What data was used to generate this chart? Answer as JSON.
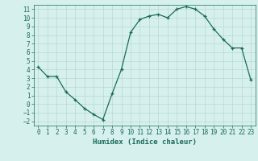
{
  "x": [
    0,
    1,
    2,
    3,
    4,
    5,
    6,
    7,
    8,
    9,
    10,
    11,
    12,
    13,
    14,
    15,
    16,
    17,
    18,
    19,
    20,
    21,
    22,
    23
  ],
  "y": [
    4.3,
    3.2,
    3.2,
    1.4,
    0.5,
    -0.5,
    -1.2,
    -1.8,
    1.2,
    4.0,
    8.3,
    9.8,
    10.2,
    10.4,
    10.0,
    11.0,
    11.3,
    11.0,
    10.2,
    8.7,
    7.5,
    6.5,
    6.5,
    2.8
  ],
  "line_color": "#1a6b5a",
  "marker": "+",
  "markersize": 3.5,
  "linewidth": 0.9,
  "bg_color": "#d6f0ee",
  "grid_color": "#b8d8d4",
  "axes_bg": "#d6f0ee",
  "xlabel": "Humidex (Indice chaleur)",
  "xlabel_fontsize": 6.5,
  "yticks": [
    -2,
    -1,
    0,
    1,
    2,
    3,
    4,
    5,
    6,
    7,
    8,
    9,
    10,
    11
  ],
  "xticks": [
    0,
    1,
    2,
    3,
    4,
    5,
    6,
    7,
    8,
    9,
    10,
    11,
    12,
    13,
    14,
    15,
    16,
    17,
    18,
    19,
    20,
    21,
    22,
    23
  ],
  "xlim": [
    -0.5,
    23.5
  ],
  "ylim": [
    -2.5,
    11.5
  ],
  "tick_fontsize": 5.5
}
